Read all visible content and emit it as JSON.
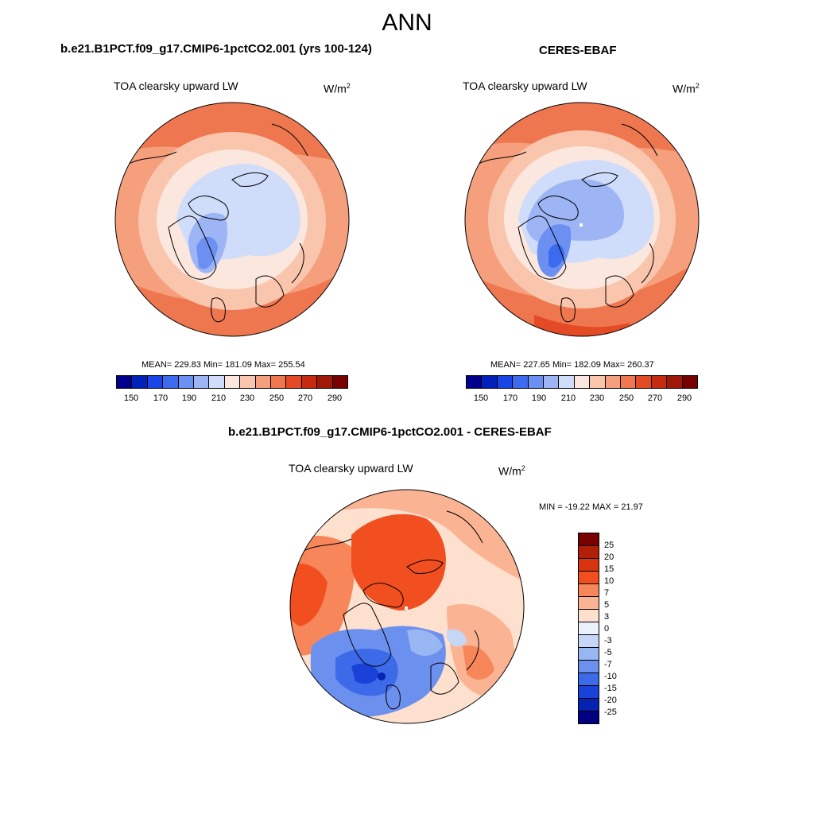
{
  "figure": {
    "title": "ANN",
    "colors": {
      "abs_scale": [
        "#00008c",
        "#0022bb",
        "#1a45e6",
        "#3c6bef",
        "#6b90f2",
        "#9db5f5",
        "#cfdcfa",
        "#fbe7dd",
        "#f9c5ad",
        "#f59f7d",
        "#ef7750",
        "#e44b25",
        "#c62a10",
        "#a01808",
        "#780000"
      ],
      "diff_scale": [
        "#780000",
        "#b01f08",
        "#d83410",
        "#f24f20",
        "#f7875a",
        "#fbb493",
        "#fde0ce",
        "#ebf1fb",
        "#c5d6f7",
        "#98b6f2",
        "#6c90ee",
        "#3d6ae8",
        "#1a42d8",
        "#0622b0",
        "#000080"
      ]
    }
  },
  "panels": {
    "model": {
      "title": "b.e21.B1PCT.f09_g17.CMIP6-1pctCO2.001 (yrs 100-124)",
      "variable": "TOA clearsky upward LW",
      "units_base": "W/m",
      "units_exp": "2",
      "stats": "MEAN= 229.83  Min= 181.09  Max= 255.54",
      "ticks": [
        "150",
        "170",
        "190",
        "210",
        "230",
        "250",
        "270",
        "290"
      ]
    },
    "obs": {
      "title": "CERES-EBAF",
      "variable": "TOA clearsky upward LW",
      "units_base": "W/m",
      "units_exp": "2",
      "stats": "MEAN= 227.65  Min= 182.09  Max= 260.37",
      "ticks": [
        "150",
        "170",
        "190",
        "210",
        "230",
        "250",
        "270",
        "290"
      ]
    },
    "diff": {
      "title": "b.e21.B1PCT.f09_g17.CMIP6-1pctCO2.001 - CERES-EBAF",
      "variable": "TOA clearsky upward LW",
      "units_base": "W/m",
      "units_exp": "2",
      "stats": "MIN = -19.22 MAX =  21.97",
      "ticks": [
        "25",
        "20",
        "15",
        "10",
        "7",
        "5",
        "3",
        "0",
        "-3",
        "-5",
        "-7",
        "-10",
        "-15",
        "-20",
        "-25"
      ]
    }
  }
}
